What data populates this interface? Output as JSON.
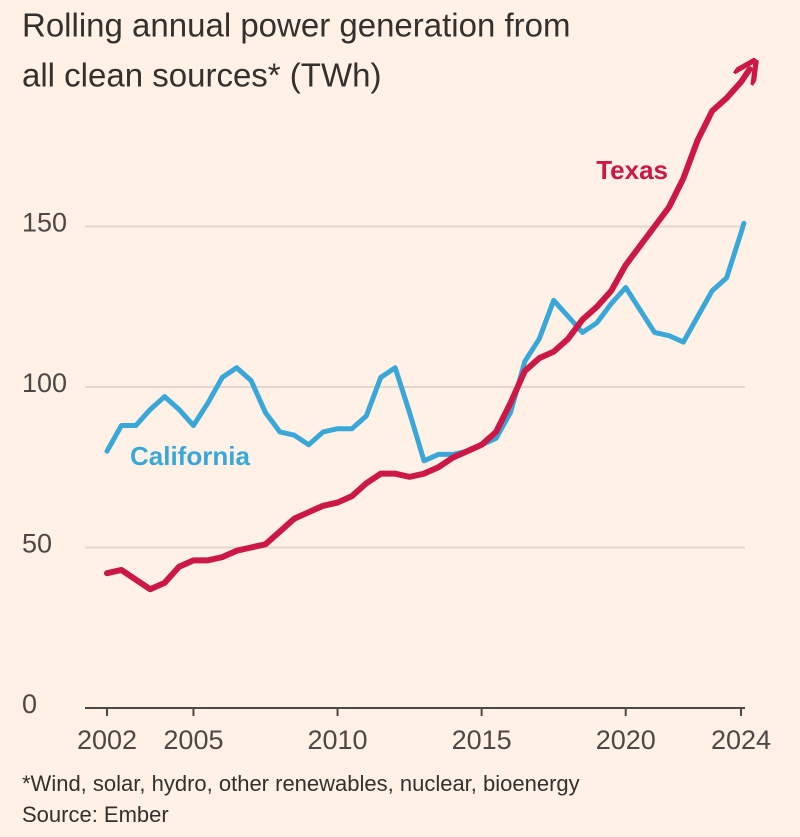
{
  "chart_data": {
    "type": "line",
    "title_lines": [
      "Rolling annual power generation from",
      "all clean sources* (TWh)"
    ],
    "xlim": [
      2002,
      2024
    ],
    "xticks": [
      2002,
      2005,
      2010,
      2015,
      2020,
      2024
    ],
    "ylim": [
      0,
      200
    ],
    "yticks": [
      0,
      50,
      100,
      150
    ],
    "grid": true,
    "series": [
      {
        "name": "California",
        "color": "#3aa7d9",
        "x": [
          2002,
          2002.5,
          2003,
          2003.5,
          2004,
          2004.5,
          2005,
          2005.5,
          2006,
          2006.5,
          2007,
          2007.5,
          2008,
          2008.5,
          2009,
          2009.5,
          2010,
          2010.5,
          2011,
          2011.5,
          2012,
          2012.5,
          2013,
          2013.5,
          2014,
          2014.5,
          2015,
          2015.5,
          2016,
          2016.5,
          2017,
          2017.5,
          2018,
          2018.5,
          2019,
          2019.5,
          2020,
          2020.5,
          2021,
          2021.5,
          2022,
          2022.5,
          2023,
          2023.5,
          2024,
          2024.1
        ],
        "values": [
          80,
          88,
          88,
          93,
          97,
          93,
          88,
          95,
          103,
          106,
          102,
          92,
          86,
          85,
          82,
          86,
          87,
          87,
          91,
          103,
          106,
          92,
          77,
          79,
          79,
          80,
          82,
          84,
          92,
          108,
          115,
          127,
          122,
          117,
          120,
          126,
          131,
          124,
          117,
          116,
          114,
          122,
          130,
          134,
          148,
          151
        ]
      },
      {
        "name": "Texas",
        "color": "#cc1846",
        "x": [
          2002,
          2002.5,
          2003,
          2003.5,
          2004,
          2004.5,
          2005,
          2005.5,
          2006,
          2006.5,
          2007,
          2007.5,
          2008,
          2008.5,
          2009,
          2009.5,
          2010,
          2010.5,
          2011,
          2011.5,
          2012,
          2012.5,
          2013,
          2013.5,
          2014,
          2014.5,
          2015,
          2015.5,
          2016,
          2016.5,
          2017,
          2017.5,
          2018,
          2018.5,
          2019,
          2019.5,
          2020,
          2020.5,
          2021,
          2021.5,
          2022,
          2022.5,
          2023,
          2023.5,
          2024,
          2024.3
        ],
        "values": [
          42,
          43,
          40,
          37,
          39,
          44,
          46,
          46,
          47,
          49,
          50,
          51,
          55,
          59,
          61,
          63,
          64,
          66,
          70,
          73,
          73,
          72,
          73,
          75,
          78,
          80,
          82,
          86,
          95,
          105,
          109,
          111,
          115,
          121,
          125,
          130,
          138,
          144,
          150,
          156,
          165,
          177,
          186,
          190,
          195,
          199
        ]
      }
    ],
    "footnote": "*Wind, solar, hydro, other renewables, nuclear, bioenergy",
    "source": "Source: Ember"
  }
}
